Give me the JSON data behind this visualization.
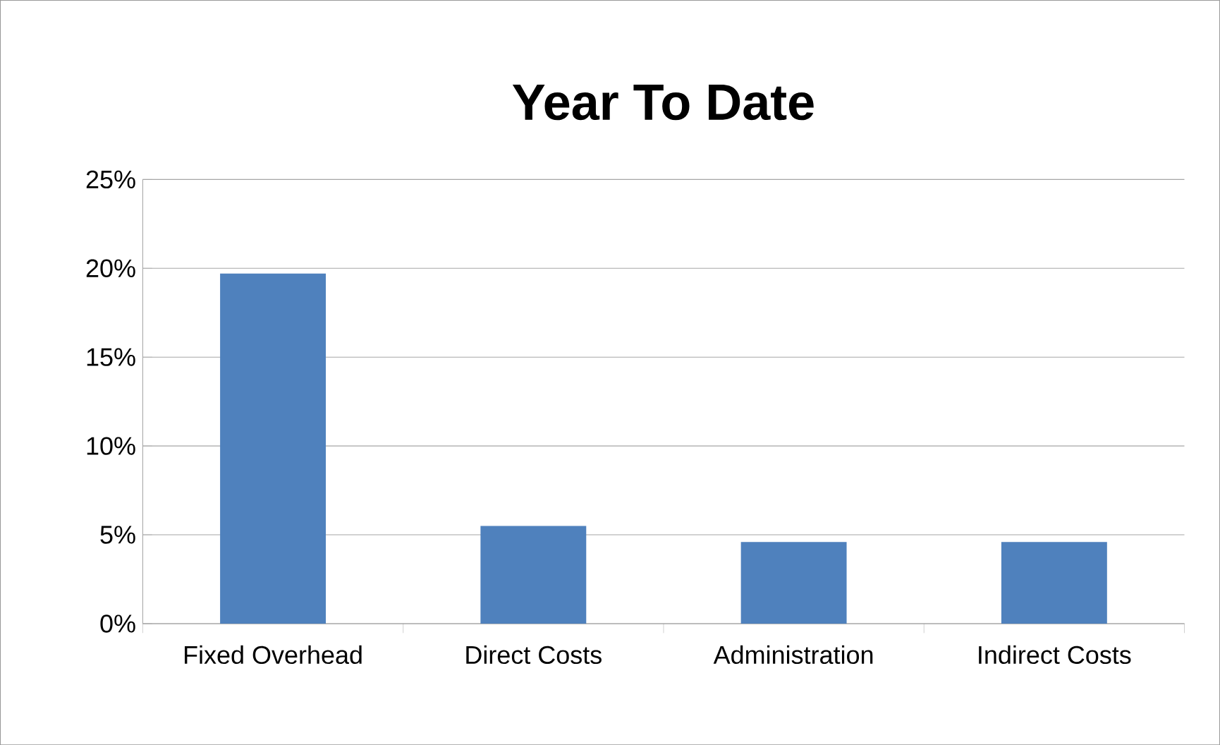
{
  "chart_data": {
    "type": "bar",
    "title": "Year To Date",
    "categories": [
      "Fixed Overhead",
      "Direct Costs",
      "Administration",
      "Indirect Costs"
    ],
    "values": [
      19.7,
      5.5,
      4.6,
      4.6
    ],
    "color": "#4f81bd",
    "ylim": [
      0,
      25
    ],
    "yticks": [
      {
        "value": 0,
        "label": "0%"
      },
      {
        "value": 5,
        "label": "5%"
      },
      {
        "value": 10,
        "label": "10%"
      },
      {
        "value": 15,
        "label": "15%"
      },
      {
        "value": 20,
        "label": "20%"
      },
      {
        "value": 25,
        "label": "25%"
      }
    ],
    "grid": "y"
  }
}
